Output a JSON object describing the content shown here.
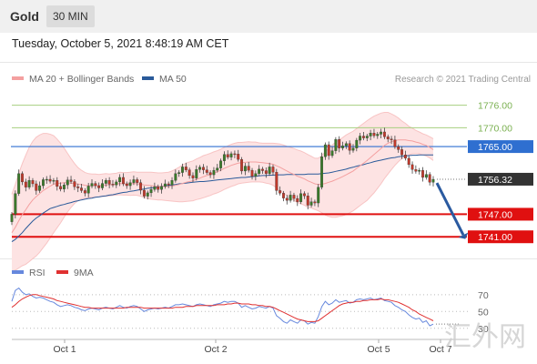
{
  "header": {
    "instrument": "Gold",
    "timeframe": "30 MIN"
  },
  "datetime": "Tuesday, October 5, 2021 8:48:19 AM CET",
  "legend": {
    "bollinger": "MA 20 + Bollinger Bands",
    "ma50": "MA 50",
    "rsi": "RSI",
    "ma9": "9MA"
  },
  "copyright": "Research © 2021 Trading Central",
  "watermark": "汇外网",
  "colors": {
    "bollinger": "#f4a0a0",
    "band_fill": "#fde3e3",
    "ma50": "#2a5a9a",
    "resistance": "#a6cf7f",
    "pivot": "#2f6fd0",
    "support": "#e01010",
    "current": "#333333",
    "rsi": "#6688dd",
    "rsi_ma": "#e03030",
    "candle_up": "#3a7a2a",
    "candle_down": "#c0392b",
    "arrow": "#2a5aa0"
  },
  "chart_data": [
    {
      "type": "candlestick",
      "title": "Gold",
      "timeframe": "30 MIN",
      "x_ticks": [
        "Oct 1",
        "Oct 2",
        "Oct 5",
        "Oct 7"
      ],
      "ylim": [
        1735,
        1781
      ],
      "levels": [
        {
          "label": "1776.00",
          "value": 1776.0,
          "kind": "resistance"
        },
        {
          "label": "1770.00",
          "value": 1770.0,
          "kind": "resistance"
        },
        {
          "label": "1765.00",
          "value": 1765.0,
          "kind": "pivot"
        },
        {
          "label": "1756.32",
          "value": 1756.32,
          "kind": "current"
        },
        {
          "label": "1747.00",
          "value": 1747.0,
          "kind": "support"
        },
        {
          "label": "1741.00",
          "value": 1741.0,
          "kind": "support"
        }
      ],
      "closes": [
        1747.0,
        1752.5,
        1757.8,
        1755.6,
        1754.2,
        1756.0,
        1755.1,
        1753.3,
        1754.6,
        1756.2,
        1756.3,
        1755.8,
        1756.0,
        1754.4,
        1753.7,
        1754.8,
        1756.1,
        1755.7,
        1754.3,
        1754.0,
        1753.3,
        1752.6,
        1754.5,
        1755.2,
        1754.6,
        1754.0,
        1755.2,
        1756.0,
        1755.0,
        1754.8,
        1755.6,
        1756.8,
        1755.1,
        1754.6,
        1755.4,
        1756.2,
        1755.4,
        1753.4,
        1751.8,
        1752.7,
        1753.6,
        1754.3,
        1753.6,
        1754.4,
        1755.1,
        1754.8,
        1756.0,
        1757.8,
        1758.1,
        1759.6,
        1758.8,
        1757.3,
        1756.6,
        1758.9,
        1759.5,
        1758.8,
        1758.1,
        1757.5,
        1758.7,
        1759.3,
        1761.2,
        1762.9,
        1762.2,
        1763.1,
        1763.0,
        1761.6,
        1758.5,
        1759.8,
        1758.7,
        1757.1,
        1757.8,
        1759.0,
        1758.6,
        1757.8,
        1759.6,
        1758.2,
        1753.3,
        1752.6,
        1751.3,
        1750.7,
        1752.1,
        1751.2,
        1750.3,
        1752.5,
        1751.9,
        1749.4,
        1750.3,
        1750.0,
        1754.2,
        1762.3,
        1765.5,
        1762.6,
        1763.9,
        1766.9,
        1764.6,
        1765.2,
        1765.8,
        1764.0,
        1764.6,
        1766.7,
        1767.8,
        1767.3,
        1767.8,
        1768.6,
        1767.9,
        1768.3,
        1768.9,
        1767.6,
        1767.0,
        1766.8,
        1765.0,
        1764.2,
        1762.8,
        1761.9,
        1760.2,
        1758.9,
        1758.4,
        1758.7,
        1756.8,
        1757.6,
        1755.5,
        1756.3
      ],
      "ma50": [
        1739.7,
        1740.3,
        1741.2,
        1742.1,
        1743.2,
        1744.2,
        1745.2,
        1746.0,
        1746.6,
        1747.3,
        1747.9,
        1748.5,
        1748.8,
        1749.1,
        1749.4,
        1749.6,
        1749.9,
        1750.1,
        1750.4,
        1750.6,
        1750.8,
        1751.0,
        1751.2,
        1751.3,
        1751.5,
        1751.6,
        1751.8,
        1751.9,
        1752.1,
        1752.2,
        1752.4,
        1752.6,
        1752.8,
        1752.9,
        1753.1,
        1753.2,
        1753.4,
        1753.6,
        1753.7,
        1753.9,
        1754.0,
        1754.1,
        1754.3,
        1754.4,
        1754.5,
        1754.7,
        1754.8,
        1754.9,
        1755.1,
        1755.2,
        1755.3,
        1755.4,
        1755.5,
        1755.6,
        1755.7,
        1755.7,
        1755.8,
        1755.9,
        1756.0,
        1756.1,
        1756.2,
        1756.3,
        1756.4,
        1756.5,
        1756.6,
        1756.7,
        1756.8,
        1756.8,
        1756.9,
        1757.0,
        1757.1,
        1757.2,
        1757.3,
        1757.3,
        1757.4,
        1757.4,
        1757.5,
        1757.5,
        1757.5,
        1757.6,
        1757.6,
        1757.6,
        1757.6,
        1757.6,
        1757.6,
        1757.7,
        1757.7,
        1757.7,
        1757.7,
        1757.8,
        1757.9,
        1758.0,
        1758.2,
        1758.4,
        1758.6,
        1758.8,
        1759.0,
        1759.3,
        1759.5,
        1759.8,
        1760.0,
        1760.2,
        1760.5,
        1760.7,
        1761.0,
        1761.2,
        1761.4,
        1761.6,
        1761.8,
        1762.0,
        1762.1,
        1762.3,
        1762.4,
        1762.5,
        1762.6,
        1762.7,
        1762.7,
        1762.8,
        1762.8,
        1762.8,
        1762.8,
        1762.8
      ],
      "bb_mid": [
        1742.1,
        1743.5,
        1745.3,
        1746.9,
        1748.2,
        1749.6,
        1750.8,
        1751.7,
        1752.5,
        1753.3,
        1753.9,
        1754.5,
        1755.0,
        1755.2,
        1755.3,
        1755.4,
        1755.4,
        1755.3,
        1755.2,
        1755.0,
        1754.9,
        1754.7,
        1754.6,
        1754.6,
        1754.6,
        1754.6,
        1754.7,
        1754.8,
        1754.8,
        1754.9,
        1755.0,
        1755.2,
        1755.1,
        1755.1,
        1755.1,
        1755.2,
        1755.1,
        1755.0,
        1754.8,
        1754.7,
        1754.6,
        1754.5,
        1754.4,
        1754.4,
        1754.4,
        1754.4,
        1754.5,
        1754.7,
        1754.9,
        1755.2,
        1755.5,
        1755.7,
        1755.9,
        1756.3,
        1756.6,
        1757.0,
        1757.3,
        1757.6,
        1758.0,
        1758.3,
        1758.7,
        1759.2,
        1759.6,
        1760.0,
        1760.3,
        1760.6,
        1760.7,
        1760.8,
        1760.9,
        1760.9,
        1760.9,
        1760.8,
        1760.7,
        1760.6,
        1760.5,
        1760.3,
        1759.9,
        1759.5,
        1759.0,
        1758.5,
        1758.0,
        1757.6,
        1757.1,
        1756.8,
        1756.4,
        1755.9,
        1755.5,
        1755.1,
        1754.9,
        1755.0,
        1755.2,
        1755.5,
        1755.8,
        1756.2,
        1756.6,
        1757.0,
        1757.5,
        1758.0,
        1758.5,
        1759.2,
        1759.9,
        1760.6,
        1761.3,
        1762.1,
        1762.9,
        1763.7,
        1764.5,
        1765.3,
        1765.9,
        1766.3,
        1766.6,
        1766.8,
        1766.8,
        1766.8,
        1766.6,
        1766.5,
        1766.2,
        1766.0,
        1765.6,
        1765.3,
        1764.8,
        1764.2
      ],
      "bb_width": [
        10.2,
        11.4,
        12.6,
        13.6,
        14.5,
        15.2,
        15.6,
        15.8,
        15.6,
        15.2,
        14.6,
        13.8,
        12.9,
        11.8,
        10.6,
        9.2,
        7.8,
        6.5,
        5.3,
        4.4,
        3.8,
        3.4,
        3.2,
        3.1,
        3.1,
        3.0,
        3.0,
        3.0,
        2.9,
        2.9,
        2.9,
        3.0,
        3.0,
        3.0,
        3.1,
        3.1,
        3.1,
        3.2,
        3.4,
        3.5,
        3.6,
        3.6,
        3.6,
        3.6,
        3.7,
        3.8,
        4.0,
        4.3,
        4.6,
        4.9,
        5.1,
        5.2,
        5.3,
        5.4,
        5.5,
        5.6,
        5.6,
        5.6,
        5.6,
        5.6,
        5.6,
        5.6,
        5.6,
        5.6,
        5.6,
        5.5,
        5.4,
        5.4,
        5.4,
        5.3,
        5.3,
        5.2,
        5.2,
        5.3,
        5.4,
        5.6,
        5.9,
        6.2,
        6.4,
        6.6,
        6.8,
        6.9,
        7.0,
        7.0,
        7.0,
        7.0,
        6.9,
        6.8,
        7.0,
        7.6,
        8.4,
        9.1,
        9.6,
        10.0,
        10.2,
        10.4,
        10.6,
        10.6,
        10.6,
        10.6,
        10.6,
        10.6,
        10.6,
        10.4,
        10.2,
        9.8,
        9.4,
        8.8,
        8.2,
        7.4,
        6.6,
        5.8,
        5.0,
        4.4,
        3.8,
        3.4,
        3.1,
        2.9,
        2.8,
        2.8,
        2.8,
        2.9
      ]
    },
    {
      "type": "line",
      "title": "RSI",
      "x_ticks": [
        "Oct 1",
        "Oct 2",
        "Oct 5",
        "Oct 7"
      ],
      "ylim": [
        20,
        85
      ],
      "y_ticks": [
        70,
        50,
        30
      ],
      "series": [
        {
          "name": "RSI",
          "values": [
            62,
            75,
            78,
            73,
            70,
            71,
            68,
            66,
            67,
            66,
            64,
            62,
            61,
            58,
            56,
            57,
            58,
            57,
            55,
            54,
            52,
            51,
            53,
            54,
            53,
            52,
            54,
            55,
            54,
            53,
            55,
            57,
            55,
            54,
            56,
            57,
            56,
            53,
            50,
            52,
            53,
            54,
            53,
            54,
            55,
            54,
            56,
            58,
            58,
            59,
            58,
            57,
            56,
            58,
            59,
            58,
            57,
            56,
            58,
            59,
            60,
            62,
            61,
            62,
            62,
            60,
            55,
            57,
            55,
            53,
            54,
            56,
            55,
            54,
            56,
            54,
            45,
            42,
            38,
            36,
            40,
            38,
            36,
            40,
            39,
            35,
            37,
            36,
            44,
            56,
            62,
            58,
            60,
            64,
            61,
            62,
            63,
            60,
            61,
            64,
            65,
            64,
            65,
            66,
            64,
            65,
            66,
            63,
            62,
            61,
            57,
            55,
            52,
            50,
            46,
            43,
            41,
            42,
            37,
            39,
            33,
            35
          ]
        },
        {
          "name": "9MA",
          "values": [
            55,
            58,
            62,
            65,
            67,
            69,
            70,
            70,
            69,
            68,
            67,
            66,
            65,
            63,
            62,
            61,
            60,
            59,
            58,
            57,
            56,
            55,
            55,
            54,
            54,
            54,
            54,
            54,
            54,
            54,
            54,
            54,
            54,
            55,
            55,
            55,
            55,
            55,
            54,
            54,
            54,
            54,
            54,
            54,
            54,
            54,
            54,
            55,
            55,
            55,
            56,
            56,
            56,
            57,
            57,
            57,
            57,
            57,
            57,
            58,
            58,
            58,
            59,
            59,
            60,
            60,
            59,
            59,
            59,
            58,
            58,
            57,
            57,
            56,
            56,
            55,
            53,
            51,
            49,
            47,
            45,
            43,
            41,
            40,
            39,
            38,
            38,
            38,
            39,
            42,
            45,
            48,
            51,
            54,
            57,
            59,
            60,
            61,
            61,
            62,
            62,
            63,
            63,
            64,
            64,
            64,
            65,
            64,
            64,
            63,
            62,
            61,
            59,
            57,
            55,
            52,
            50,
            47,
            45,
            43,
            41,
            39
          ]
        }
      ]
    }
  ]
}
